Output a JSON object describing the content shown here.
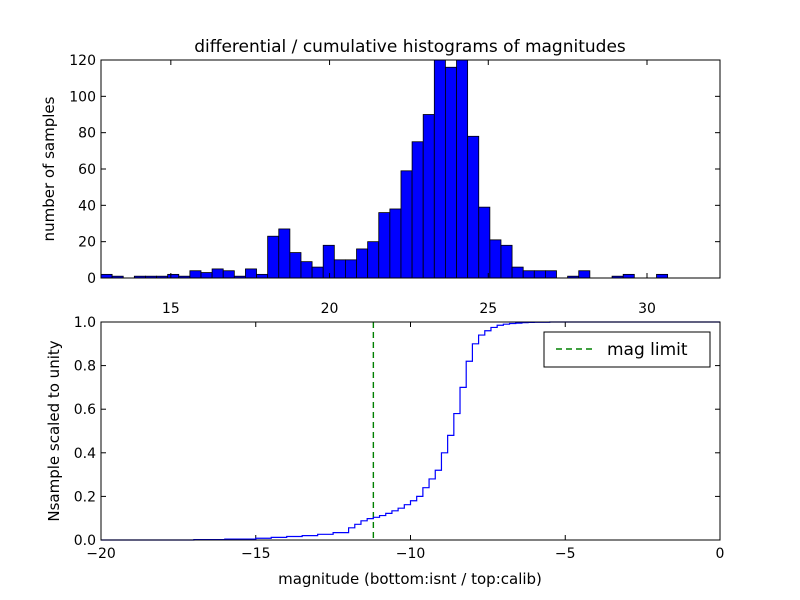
{
  "chart_data": [
    {
      "type": "bar",
      "title": "differential / cumulative histograms of magnitudes",
      "xlabel": "",
      "ylabel": "number of samples",
      "xlim": [
        12.8,
        32.3
      ],
      "ylim": [
        0,
        120
      ],
      "xticks": [
        "15",
        "20",
        "25",
        "30"
      ],
      "yticks": [
        "0",
        "20",
        "40",
        "60",
        "80",
        "100",
        "120"
      ],
      "x_tick_position": "bottom-outside",
      "bar_color": "#0000ff",
      "bin_width": 0.35,
      "bins": [
        {
          "x": 12.8,
          "count": 2
        },
        {
          "x": 13.15,
          "count": 1
        },
        {
          "x": 13.5,
          "count": 0
        },
        {
          "x": 13.85,
          "count": 1
        },
        {
          "x": 14.2,
          "count": 1
        },
        {
          "x": 14.55,
          "count": 1
        },
        {
          "x": 14.9,
          "count": 2
        },
        {
          "x": 15.25,
          "count": 1
        },
        {
          "x": 15.6,
          "count": 4
        },
        {
          "x": 15.95,
          "count": 3
        },
        {
          "x": 16.3,
          "count": 5
        },
        {
          "x": 16.65,
          "count": 4
        },
        {
          "x": 17.0,
          "count": 1
        },
        {
          "x": 17.35,
          "count": 5
        },
        {
          "x": 17.7,
          "count": 2
        },
        {
          "x": 18.05,
          "count": 23
        },
        {
          "x": 18.4,
          "count": 27
        },
        {
          "x": 18.75,
          "count": 14
        },
        {
          "x": 19.1,
          "count": 9
        },
        {
          "x": 19.45,
          "count": 6
        },
        {
          "x": 19.8,
          "count": 18
        },
        {
          "x": 20.15,
          "count": 10
        },
        {
          "x": 20.5,
          "count": 10
        },
        {
          "x": 20.85,
          "count": 16
        },
        {
          "x": 21.2,
          "count": 20
        },
        {
          "x": 21.55,
          "count": 36
        },
        {
          "x": 21.9,
          "count": 38
        },
        {
          "x": 22.25,
          "count": 59
        },
        {
          "x": 22.6,
          "count": 75
        },
        {
          "x": 22.95,
          "count": 90
        },
        {
          "x": 23.3,
          "count": 120
        },
        {
          "x": 23.65,
          "count": 116
        },
        {
          "x": 24.0,
          "count": 120
        },
        {
          "x": 24.35,
          "count": 78
        },
        {
          "x": 24.7,
          "count": 39
        },
        {
          "x": 25.05,
          "count": 21
        },
        {
          "x": 25.4,
          "count": 18
        },
        {
          "x": 25.75,
          "count": 6
        },
        {
          "x": 26.1,
          "count": 4
        },
        {
          "x": 26.45,
          "count": 4
        },
        {
          "x": 26.8,
          "count": 4
        },
        {
          "x": 27.15,
          "count": 0
        },
        {
          "x": 27.5,
          "count": 1
        },
        {
          "x": 27.85,
          "count": 4
        },
        {
          "x": 28.2,
          "count": 0
        },
        {
          "x": 28.55,
          "count": 0
        },
        {
          "x": 28.9,
          "count": 1
        },
        {
          "x": 29.25,
          "count": 2
        },
        {
          "x": 29.6,
          "count": 0
        },
        {
          "x": 29.95,
          "count": 0
        },
        {
          "x": 30.3,
          "count": 2
        },
        {
          "x": 30.65,
          "count": 0
        }
      ]
    },
    {
      "type": "line",
      "title": "",
      "xlabel": "magnitude (bottom:isnt / top:calib)",
      "ylabel": "Nsample scaled to unity",
      "xlim": [
        -20,
        0
      ],
      "ylim": [
        0,
        1
      ],
      "xticks": [
        "−20",
        "−15",
        "−10",
        "−5",
        "0"
      ],
      "yticks": [
        "0.0",
        "0.2",
        "0.4",
        "0.6",
        "0.8",
        "1.0"
      ],
      "legend": {
        "position": "top-right",
        "entries": [
          {
            "label": "mag limit",
            "style": "dashed",
            "color": "#008000"
          }
        ]
      },
      "vline": {
        "x": -11.2,
        "color": "#008000",
        "style": "dashed"
      },
      "series": [
        {
          "color": "#0000ff",
          "style": "step",
          "x": [
            -20,
            -17,
            -16,
            -15,
            -14.5,
            -14,
            -13.5,
            -13,
            -12.5,
            -12,
            -11.8,
            -11.6,
            -11.4,
            -11.2,
            -11.0,
            -10.8,
            -10.6,
            -10.4,
            -10.2,
            -10.0,
            -9.8,
            -9.6,
            -9.4,
            -9.2,
            -9.0,
            -8.8,
            -8.6,
            -8.4,
            -8.2,
            -8.0,
            -7.8,
            -7.6,
            -7.4,
            -7.2,
            -7.0,
            -6.8,
            -6.6,
            -6.4,
            -6.2,
            -6.0,
            -5.5,
            -5.0,
            0
          ],
          "y": [
            0,
            0.002,
            0.004,
            0.008,
            0.012,
            0.016,
            0.02,
            0.026,
            0.034,
            0.056,
            0.072,
            0.088,
            0.098,
            0.104,
            0.112,
            0.122,
            0.134,
            0.146,
            0.162,
            0.18,
            0.2,
            0.24,
            0.28,
            0.32,
            0.4,
            0.48,
            0.58,
            0.7,
            0.82,
            0.9,
            0.94,
            0.96,
            0.975,
            0.985,
            0.99,
            0.993,
            0.995,
            0.997,
            0.998,
            0.999,
            1.0,
            1.0,
            1.0
          ]
        }
      ]
    }
  ]
}
